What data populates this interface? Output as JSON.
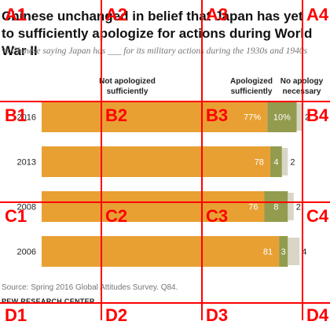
{
  "header": {
    "title": "Chinese unchanged in belief that Japan has yet to sufficiently apologize for actions during World War II",
    "subtitle": "% Chinese saying Japan has ___ for its military actions during the 1930s and 1940s"
  },
  "column_headers": {
    "not_sufficient": "Not apologized sufficiently",
    "sufficient": "Apologized sufficiently",
    "none": "No apology necessary"
  },
  "chart_data": {
    "type": "bar",
    "orientation": "horizontal",
    "stacked": true,
    "categories": [
      "2016",
      "2013",
      "2008",
      "2006"
    ],
    "series": [
      {
        "name": "Not apologized sufficiently",
        "values": [
          null,
          null,
          null,
          null
        ]
      },
      {
        "name": "Apologized sufficiently",
        "values": [
          77,
          78,
          76,
          81
        ]
      },
      {
        "name": "No apology necessary",
        "values": [
          10,
          4,
          8,
          3
        ]
      },
      {
        "name": "",
        "values": [
          2,
          2,
          2,
          4
        ]
      }
    ],
    "value_labels": [
      [
        "77%",
        "10%",
        "2"
      ],
      [
        "78",
        "4",
        "2"
      ],
      [
        "76",
        "8",
        "2"
      ],
      [
        "81",
        "3",
        "4"
      ]
    ],
    "colors": [
      "#e8a033",
      "#939b4e",
      "#d9d6c6"
    ],
    "xlim": [
      0,
      100
    ]
  },
  "footer": {
    "source": "Source: Spring 2016 Global Attitudes Survey. Q84.",
    "org": "PEW RESEARCH CENTER"
  },
  "overlay": {
    "cells": [
      "A1",
      "A2",
      "A3",
      "A4",
      "B1",
      "B2",
      "B3",
      "B4",
      "C1",
      "C2",
      "C3",
      "C4",
      "D1",
      "D2",
      "D3",
      "D4"
    ]
  }
}
